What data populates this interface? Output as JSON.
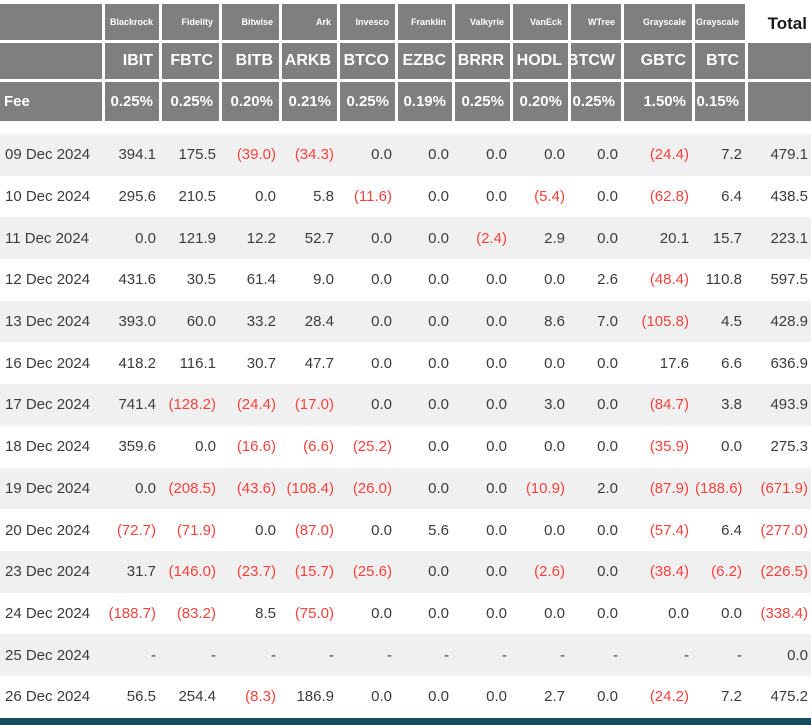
{
  "colors": {
    "header_bg": "#7f7f7f",
    "row_stripe": "#f0f0f0",
    "negative_red": "#f8423d",
    "text": "#3b3b3b",
    "footer_bar": "#174b60"
  },
  "chart_data": {
    "type": "table",
    "total_label": "Total",
    "fee_row_label": "Fee",
    "columns": {
      "issuers": [
        "Blackrock",
        "Fidelity",
        "Bitwise",
        "Ark",
        "Invesco",
        "Franklin",
        "Valkyrie",
        "VanEck",
        "WTree",
        "Grayscale",
        "Grayscale"
      ],
      "tickers": [
        "IBIT",
        "FBTC",
        "BITB",
        "ARKB",
        "BTCO",
        "EZBC",
        "BRRR",
        "HODL",
        "BTCW",
        "GBTC",
        "BTC"
      ],
      "fees": [
        "0.25%",
        "0.25%",
        "0.20%",
        "0.21%",
        "0.25%",
        "0.19%",
        "0.25%",
        "0.20%",
        "0.25%",
        "1.50%",
        "0.15%"
      ]
    },
    "rows": [
      {
        "date": "09 Dec 2024",
        "values": [
          "394.1",
          "175.5",
          "(39.0)",
          "(34.3)",
          "0.0",
          "0.0",
          "0.0",
          "0.0",
          "0.0",
          "(24.4)",
          "7.2"
        ],
        "total": "479.1"
      },
      {
        "date": "10 Dec 2024",
        "values": [
          "295.6",
          "210.5",
          "0.0",
          "5.8",
          "(11.6)",
          "0.0",
          "0.0",
          "(5.4)",
          "0.0",
          "(62.8)",
          "6.4"
        ],
        "total": "438.5"
      },
      {
        "date": "11 Dec 2024",
        "values": [
          "0.0",
          "121.9",
          "12.2",
          "52.7",
          "0.0",
          "0.0",
          "(2.4)",
          "2.9",
          "0.0",
          "20.1",
          "15.7"
        ],
        "total": "223.1"
      },
      {
        "date": "12 Dec 2024",
        "values": [
          "431.6",
          "30.5",
          "61.4",
          "9.0",
          "0.0",
          "0.0",
          "0.0",
          "0.0",
          "2.6",
          "(48.4)",
          "110.8"
        ],
        "total": "597.5"
      },
      {
        "date": "13 Dec 2024",
        "values": [
          "393.0",
          "60.0",
          "33.2",
          "28.4",
          "0.0",
          "0.0",
          "0.0",
          "8.6",
          "7.0",
          "(105.8)",
          "4.5"
        ],
        "total": "428.9"
      },
      {
        "date": "16 Dec 2024",
        "values": [
          "418.2",
          "116.1",
          "30.7",
          "47.7",
          "0.0",
          "0.0",
          "0.0",
          "0.0",
          "0.0",
          "17.6",
          "6.6"
        ],
        "total": "636.9"
      },
      {
        "date": "17 Dec 2024",
        "values": [
          "741.4",
          "(128.2)",
          "(24.4)",
          "(17.0)",
          "0.0",
          "0.0",
          "0.0",
          "3.0",
          "0.0",
          "(84.7)",
          "3.8"
        ],
        "total": "493.9"
      },
      {
        "date": "18 Dec 2024",
        "values": [
          "359.6",
          "0.0",
          "(16.6)",
          "(6.6)",
          "(25.2)",
          "0.0",
          "0.0",
          "0.0",
          "0.0",
          "(35.9)",
          "0.0"
        ],
        "total": "275.3"
      },
      {
        "date": "19 Dec 2024",
        "values": [
          "0.0",
          "(208.5)",
          "(43.6)",
          "(108.4)",
          "(26.0)",
          "0.0",
          "0.0",
          "(10.9)",
          "2.0",
          "(87.9)",
          "(188.6)"
        ],
        "total": "(671.9)"
      },
      {
        "date": "20 Dec 2024",
        "values": [
          "(72.7)",
          "(71.9)",
          "0.0",
          "(87.0)",
          "0.0",
          "5.6",
          "0.0",
          "0.0",
          "0.0",
          "(57.4)",
          "6.4"
        ],
        "total": "(277.0)"
      },
      {
        "date": "23 Dec 2024",
        "values": [
          "31.7",
          "(146.0)",
          "(23.7)",
          "(15.7)",
          "(25.6)",
          "0.0",
          "0.0",
          "(2.6)",
          "0.0",
          "(38.4)",
          "(6.2)"
        ],
        "total": "(226.5)"
      },
      {
        "date": "24 Dec 2024",
        "values": [
          "(188.7)",
          "(83.2)",
          "8.5",
          "(75.0)",
          "0.0",
          "0.0",
          "0.0",
          "0.0",
          "0.0",
          "0.0",
          "0.0"
        ],
        "total": "(338.4)"
      },
      {
        "date": "25 Dec 2024",
        "values": [
          "-",
          "-",
          "-",
          "-",
          "-",
          "-",
          "-",
          "-",
          "-",
          "-",
          "-"
        ],
        "total": "0.0"
      },
      {
        "date": "26 Dec 2024",
        "values": [
          "56.5",
          "254.4",
          "(8.3)",
          "186.9",
          "0.0",
          "0.0",
          "0.0",
          "2.7",
          "0.0",
          "(24.2)",
          "7.2"
        ],
        "total": "475.2"
      }
    ]
  }
}
